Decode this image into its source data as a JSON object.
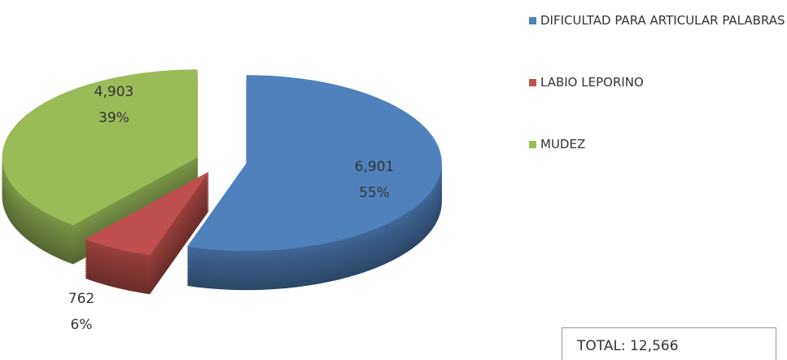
{
  "chart_data": {
    "type": "pie3d",
    "categories": [
      "DIFICULTAD PARA ARTICULAR PALABRAS",
      "LABIO LEPORINO",
      "MUDEZ"
    ],
    "values": [
      6901,
      762,
      4903
    ],
    "value_labels": [
      "6,901",
      "762",
      "4,903"
    ],
    "percentages": [
      55,
      6,
      39
    ],
    "percentage_labels": [
      "55%",
      "6%",
      "39%"
    ],
    "colors": [
      "#4f81bd",
      "#c0504d",
      "#9bbb59"
    ],
    "legend": "right",
    "annotation": "TOTAL:  12,566"
  }
}
